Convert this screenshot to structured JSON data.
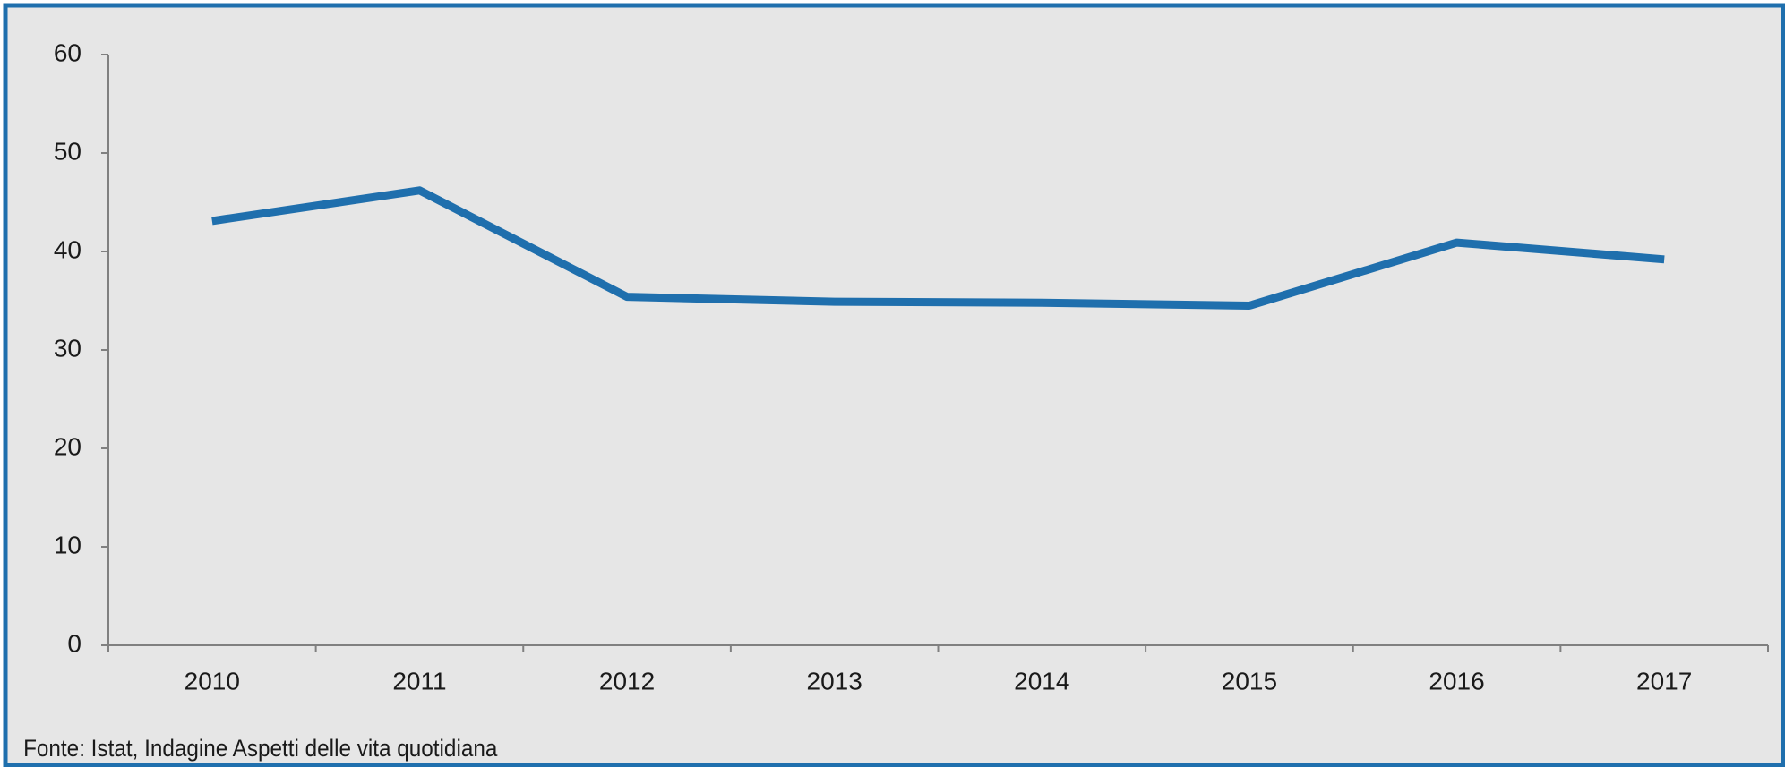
{
  "chart_data": {
    "type": "line",
    "categories": [
      "2010",
      "2011",
      "2012",
      "2013",
      "2014",
      "2015",
      "2016",
      "2017"
    ],
    "series": [
      {
        "name": null,
        "color": "#1f6fad",
        "values": [
          43.1,
          46.2,
          35.4,
          34.9,
          34.8,
          34.5,
          40.9,
          39.2
        ]
      }
    ],
    "ylim": [
      0,
      60
    ],
    "yticks": [
      0,
      10,
      20,
      30,
      40,
      50,
      60
    ],
    "grid": false,
    "source": "Fonte: Istat, Indagine Aspetti delle vita quotidiana"
  }
}
